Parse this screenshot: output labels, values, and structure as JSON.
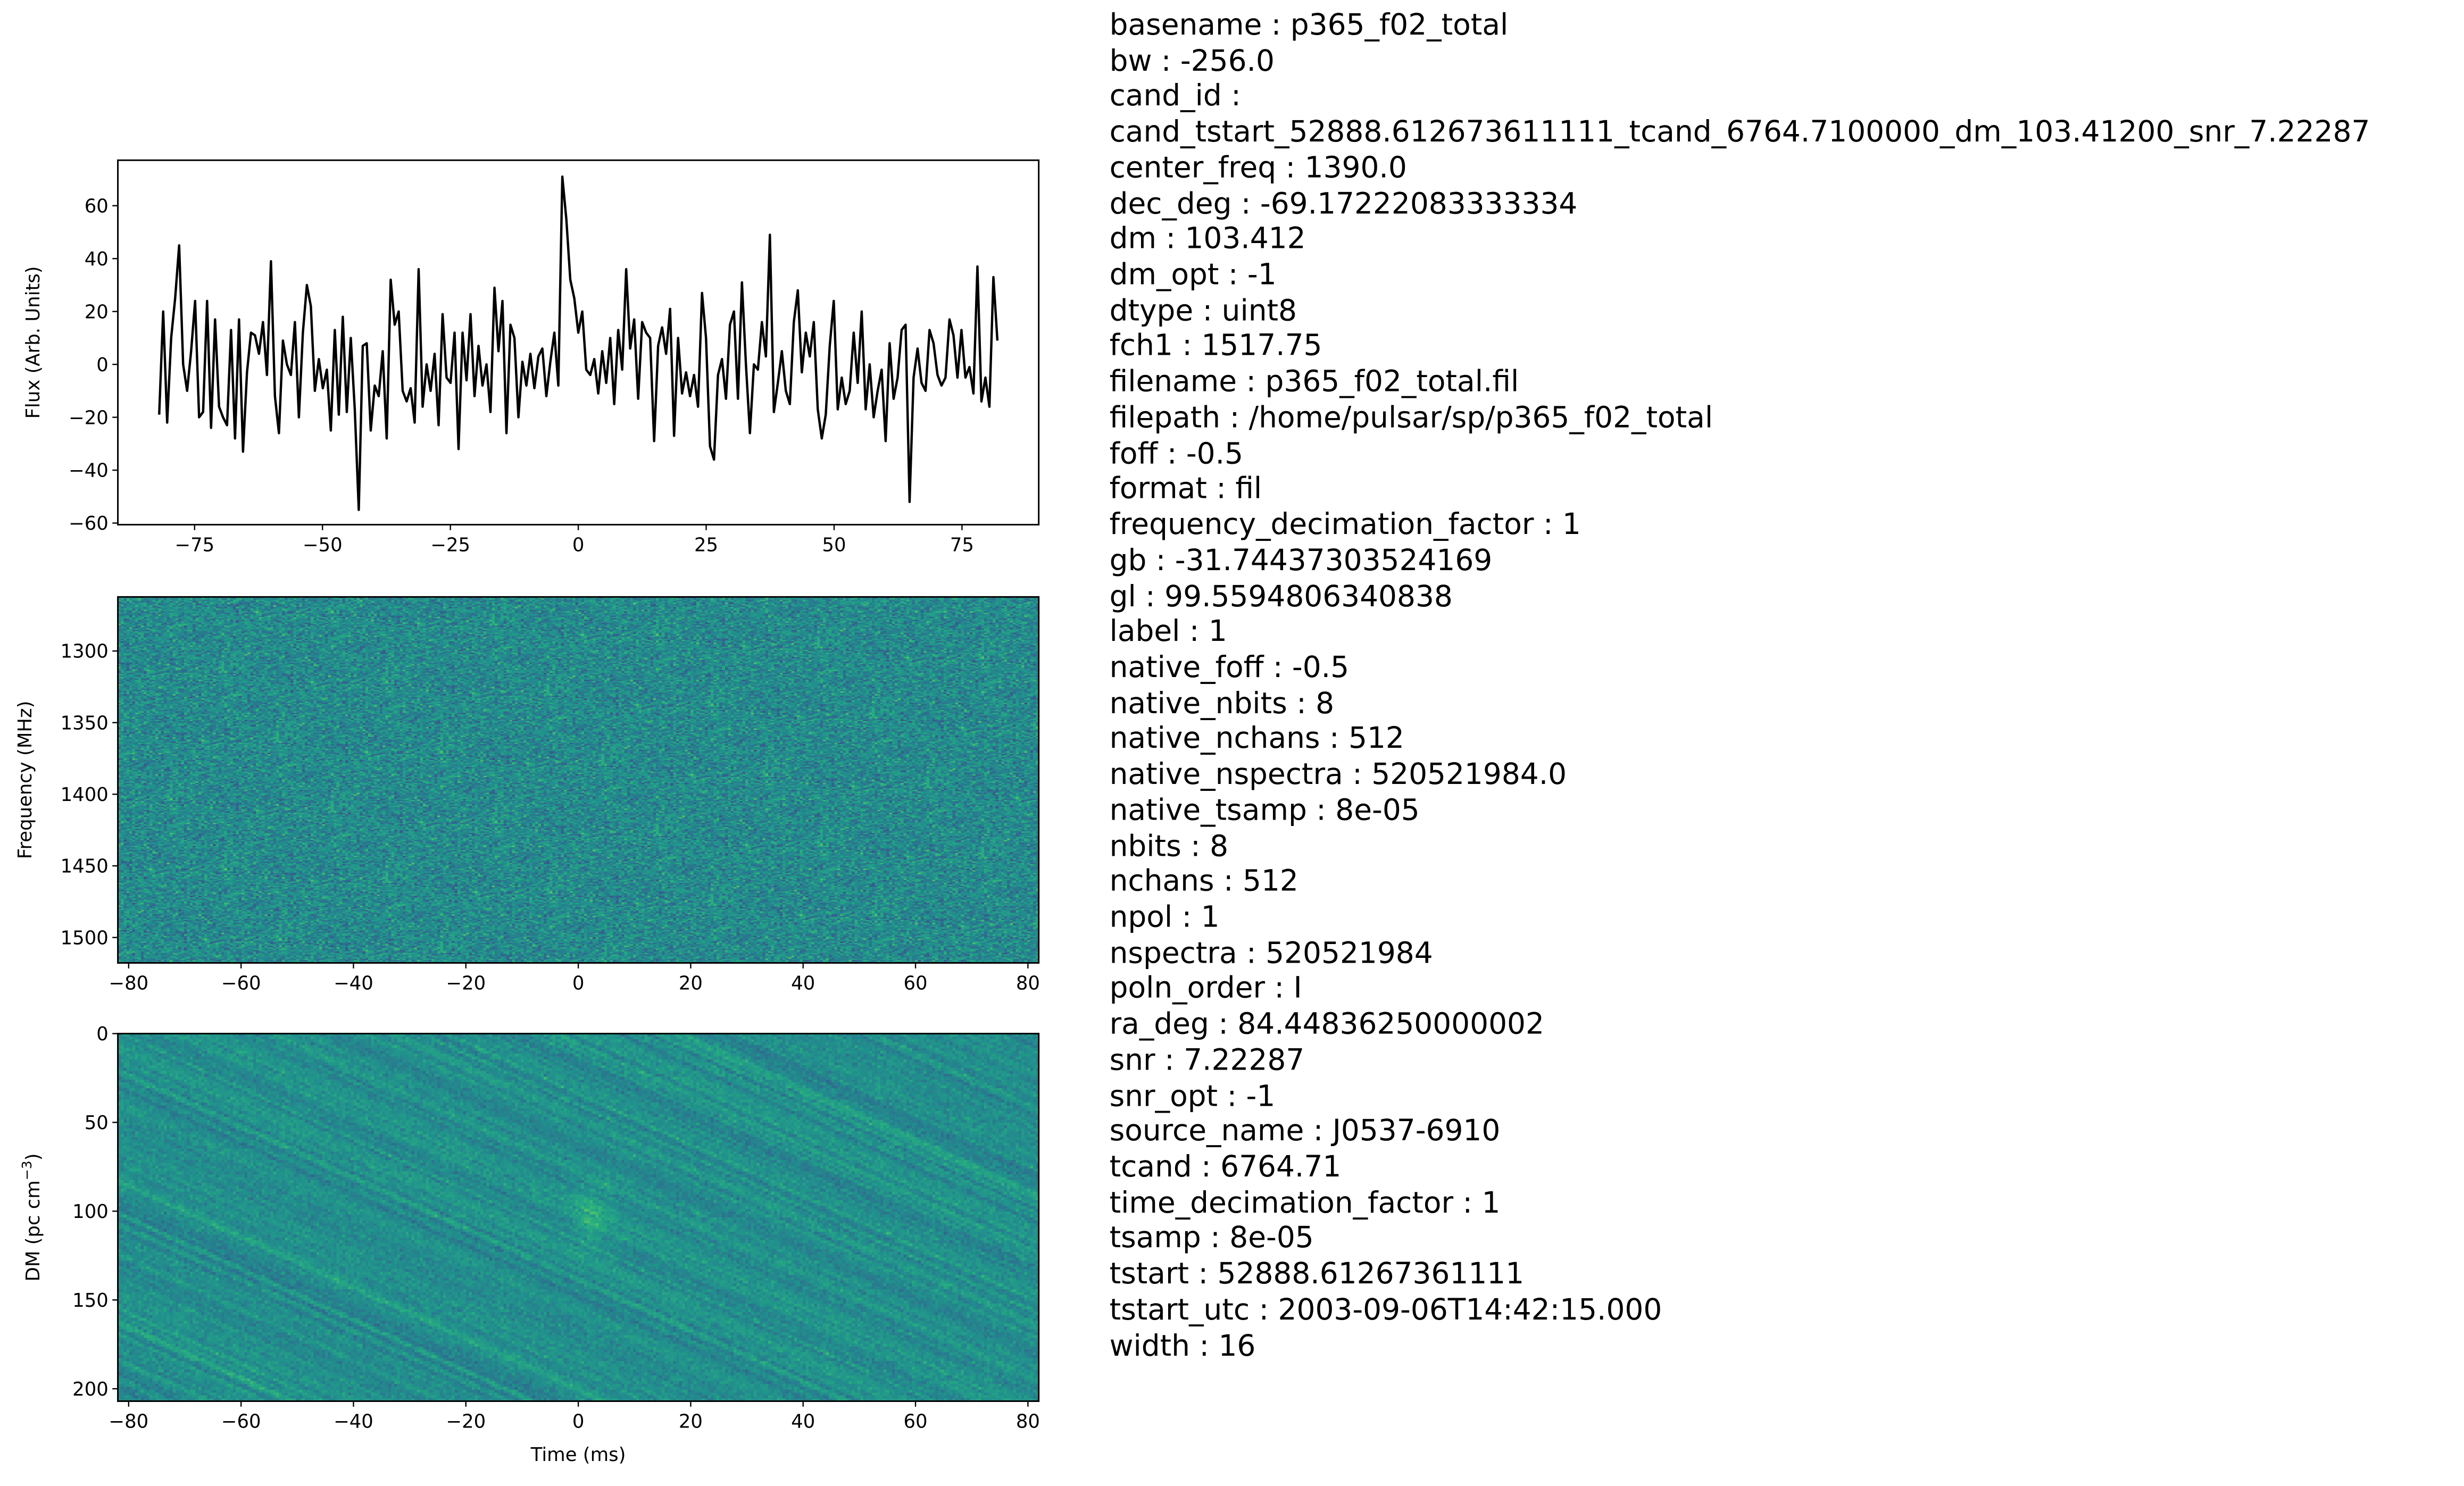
{
  "chart_data": [
    {
      "type": "line",
      "ylabel": "Flux (Arb. Units)",
      "xlabel": "",
      "xlim": [
        -90,
        90
      ],
      "ylim": [
        -60.6,
        77.2
      ],
      "xticks": [
        -75,
        -50,
        -25,
        0,
        25,
        50,
        75
      ],
      "xtick_labels": [
        "−75",
        "−50",
        "−25",
        "0",
        "25",
        "50",
        "75"
      ],
      "yticks": [
        -60,
        -40,
        -20,
        0,
        20,
        40,
        60
      ],
      "ytick_labels": [
        "−60",
        "−40",
        "−20",
        "0",
        "20",
        "40",
        "60"
      ],
      "x_range": [
        -81.92,
        81.92
      ],
      "line_color": "#000000",
      "values": [
        -19,
        20,
        -22,
        10,
        25,
        45,
        0,
        -10,
        5,
        24,
        -20,
        -18,
        24,
        -24,
        17,
        -16,
        -20,
        -23,
        13,
        -28,
        17,
        -33,
        -3,
        12,
        11,
        4,
        16,
        -4,
        39,
        -12,
        -26,
        9,
        0,
        -4,
        16,
        -20,
        12,
        30,
        22,
        -10,
        2,
        -9,
        -2,
        -25,
        13,
        -19,
        18,
        -18,
        10,
        -17,
        -55,
        7,
        8,
        -25,
        -8,
        -12,
        5,
        -28,
        32,
        15,
        20,
        -10,
        -14,
        -9,
        -22,
        36,
        -16,
        0,
        -10,
        4,
        -23,
        19,
        -5,
        -7,
        12,
        -32,
        12,
        -6,
        19,
        -12,
        7,
        -8,
        0,
        -18,
        29,
        5,
        24,
        -26,
        15,
        10,
        -20,
        1,
        -8,
        4,
        -9,
        3,
        6,
        -12,
        1,
        12,
        -8,
        71,
        55,
        32,
        25,
        12,
        20,
        -2,
        -4,
        2,
        -11,
        5,
        -7,
        10,
        -15,
        13,
        -2,
        36,
        6,
        17,
        -13,
        16,
        12,
        10,
        -29,
        7,
        14,
        4,
        21,
        -27,
        10,
        -11,
        -3,
        -12,
        -4,
        -16,
        27,
        10,
        -31,
        -36,
        -4,
        2,
        -13,
        15,
        20,
        -13,
        31,
        0,
        -26,
        0,
        -2,
        16,
        3,
        49,
        -18,
        -7,
        5,
        -10,
        -15,
        16,
        28,
        -3,
        12,
        3,
        16,
        -17,
        -28,
        -19,
        7,
        24,
        -17,
        -5,
        -15,
        -10,
        12,
        -7,
        20,
        -17,
        0,
        -20,
        -10,
        -2,
        -29,
        8,
        -13,
        -5,
        13,
        15,
        -52,
        -5,
        6,
        -7,
        -10,
        13,
        8,
        -4,
        -8,
        -5,
        17,
        11,
        -5,
        13,
        -5,
        -1,
        -11,
        37,
        -14,
        -5,
        -16,
        33,
        9
      ]
    },
    {
      "type": "heatmap",
      "colormap": "viridis",
      "ylabel": "Frequency (MHz)",
      "xlabel": "",
      "xlim": [
        -81.92,
        81.92
      ],
      "ylim": [
        1517.75,
        1262.25
      ],
      "y_inverted": true,
      "xticks": [
        -80,
        -60,
        -40,
        -20,
        0,
        20,
        40,
        60,
        80
      ],
      "xtick_labels": [
        "−80",
        "−60",
        "−40",
        "−20",
        "0",
        "20",
        "40",
        "60",
        "80"
      ],
      "yticks": [
        1300,
        1350,
        1400,
        1450,
        1500
      ],
      "ytick_labels": [
        "1300",
        "1350",
        "1400",
        "1450",
        "1500"
      ]
    },
    {
      "type": "heatmap",
      "colormap": "viridis",
      "ylabel": "DM (pc cm",
      "ylabel_sup": "−3",
      "ylabel_end": ")",
      "xlabel": "Time (ms)",
      "xlim": [
        -81.92,
        81.92
      ],
      "ylim": [
        207,
        0
      ],
      "y_inverted": true,
      "xticks": [
        -80,
        -60,
        -40,
        -20,
        0,
        20,
        40,
        60,
        80
      ],
      "xtick_labels": [
        "−80",
        "−60",
        "−40",
        "−20",
        "0",
        "20",
        "40",
        "60",
        "80"
      ],
      "yticks": [
        0,
        50,
        100,
        150,
        200
      ],
      "ytick_labels": [
        "0",
        "50",
        "100",
        "150",
        "200"
      ]
    }
  ],
  "metadata": [
    {
      "key": "basename",
      "value": "p365_f02_total"
    },
    {
      "key": "bw",
      "value": "-256.0"
    },
    {
      "key": "cand_id",
      "value": "cand_tstart_52888.612673611111_tcand_6764.7100000_dm_103.41200_snr_7.22287"
    },
    {
      "key": "center_freq",
      "value": "1390.0"
    },
    {
      "key": "dec_deg",
      "value": "-69.17222083333334"
    },
    {
      "key": "dm",
      "value": "103.412"
    },
    {
      "key": "dm_opt",
      "value": "-1"
    },
    {
      "key": "dtype",
      "value": "uint8"
    },
    {
      "key": "fch1",
      "value": "1517.75"
    },
    {
      "key": "filename",
      "value": "p365_f02_total.fil"
    },
    {
      "key": "filepath",
      "value": "/home/pulsar/sp/p365_f02_total"
    },
    {
      "key": "foff",
      "value": "-0.5"
    },
    {
      "key": "format",
      "value": "fil"
    },
    {
      "key": "frequency_decimation_factor",
      "value": "1"
    },
    {
      "key": "gb",
      "value": "-31.74437303524169"
    },
    {
      "key": "gl",
      "value": "99.5594806340838"
    },
    {
      "key": "label",
      "value": "1"
    },
    {
      "key": "native_foff",
      "value": "-0.5"
    },
    {
      "key": "native_nbits",
      "value": "8"
    },
    {
      "key": "native_nchans",
      "value": "512"
    },
    {
      "key": "native_nspectra",
      "value": "520521984.0"
    },
    {
      "key": "native_tsamp",
      "value": "8e-05"
    },
    {
      "key": "nbits",
      "value": "8"
    },
    {
      "key": "nchans",
      "value": "512"
    },
    {
      "key": "npol",
      "value": "1"
    },
    {
      "key": "nspectra",
      "value": "520521984"
    },
    {
      "key": "poln_order",
      "value": "I"
    },
    {
      "key": "ra_deg",
      "value": "84.44836250000002"
    },
    {
      "key": "snr",
      "value": "7.22287"
    },
    {
      "key": "snr_opt",
      "value": "-1"
    },
    {
      "key": "source_name",
      "value": "J0537-6910"
    },
    {
      "key": "tcand",
      "value": "6764.71"
    },
    {
      "key": "time_decimation_factor",
      "value": "1"
    },
    {
      "key": "tsamp",
      "value": "8e-05"
    },
    {
      "key": "tstart",
      "value": "52888.61267361111"
    },
    {
      "key": "tstart_utc",
      "value": "2003-09-06T14:42:15.000"
    },
    {
      "key": "width",
      "value": "16"
    }
  ]
}
